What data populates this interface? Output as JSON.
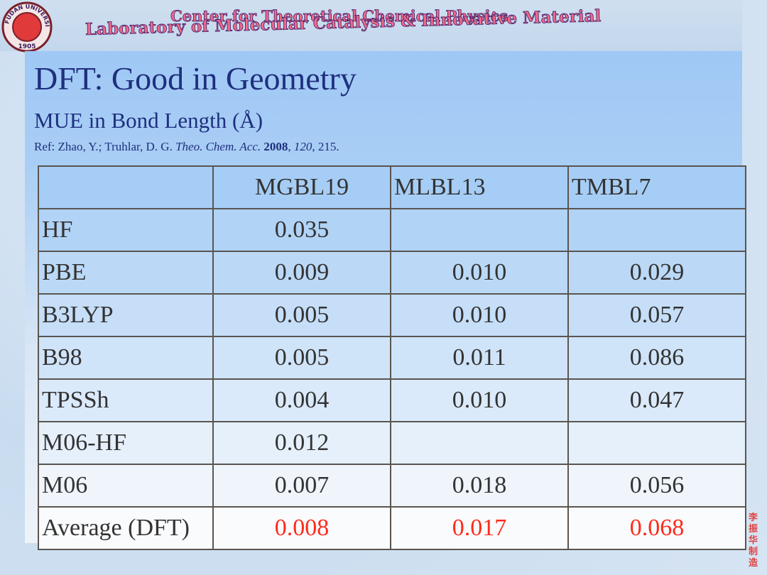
{
  "header": {
    "lines": [
      "Center for Theoretical Chemical Physics",
      "Laboratory of Molecular Catalysis & Innovative Material"
    ],
    "logo": {
      "ring": "FUDAN UNIVERSITY",
      "year": "1905"
    }
  },
  "title": "DFT: Good in Geometry",
  "subtitle": "MUE in Bond Length (Å)",
  "reference": [
    {
      "text": "Ref: Zhao, Y.; Truhlar, D. G. ",
      "style": "normal"
    },
    {
      "text": "Theo. Chem. Acc.",
      "style": "italic"
    },
    {
      "text": " ",
      "style": "normal"
    },
    {
      "text": "2008",
      "style": "bold"
    },
    {
      "text": ", ",
      "style": "normal"
    },
    {
      "text": "120",
      "style": "italic"
    },
    {
      "text": ", 215.",
      "style": "normal"
    }
  ],
  "table": {
    "columns": [
      null,
      "MGBL19",
      "MLBL13",
      "TMBL7"
    ],
    "rows": [
      [
        "HF",
        "0.035",
        null,
        null
      ],
      [
        "PBE",
        "0.009",
        "0.010",
        "0.029"
      ],
      [
        "B3LYP",
        "0.005",
        "0.010",
        "0.057"
      ],
      [
        "B98",
        "0.005",
        "0.011",
        "0.086"
      ],
      [
        "TPSSh",
        "0.004",
        "0.010",
        "0.047"
      ],
      [
        "M06-HF",
        "0.012",
        null,
        null
      ],
      [
        "M06",
        "0.007",
        "0.018",
        "0.056"
      ],
      [
        "Average (DFT)",
        "0.008",
        "0.017",
        "0.068"
      ]
    ],
    "highlight_row": 7,
    "highlight_color": "#ff2a1a"
  },
  "side_note": "李振华制造"
}
